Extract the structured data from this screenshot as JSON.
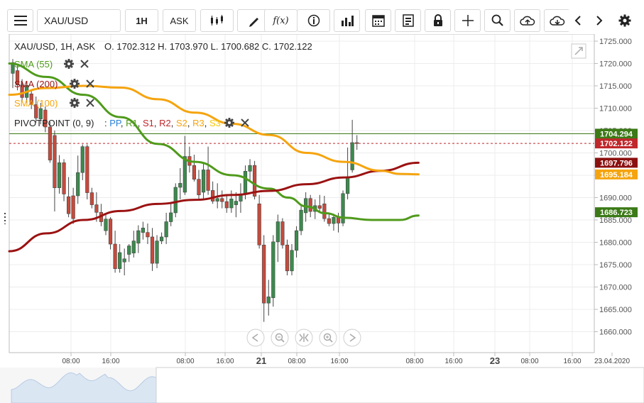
{
  "toolbar": {
    "symbol": "XAU/USD",
    "timeframe": "1H",
    "price_type": "ASK",
    "function_label": "f(x)"
  },
  "header": {
    "pair": "XAU/USD, 1H, ASK",
    "ohlc": "O. 1702.312 H. 1703.970 L. 1700.682 C. 1702.122"
  },
  "indicators": [
    {
      "label": "SMA (55)",
      "color": "#4f9a1b"
    },
    {
      "label": "SMA (200)",
      "color": "#9b1212"
    },
    {
      "label": "SMA (100)",
      "color": "#f5a40e"
    }
  ],
  "pivot": {
    "label": "PIVOTPOINT (0, 9)",
    "parts": [
      {
        "text": "PP",
        "color": "#2a7fd6"
      },
      {
        "text": "R1",
        "color": "#4f9a1b"
      },
      {
        "text": "S1",
        "color": "#c0262a"
      },
      {
        "text": "R2",
        "color": "#c0262a"
      },
      {
        "text": "S2",
        "color": "#f5a40e"
      },
      {
        "text": "R3",
        "color": "#f5a40e"
      },
      {
        "text": "S3",
        "color": "#f5c80e"
      }
    ]
  },
  "badges": [
    {
      "label": "1704.294",
      "price": 1704.294,
      "color": "#3b7a16"
    },
    {
      "label": "1702.122",
      "price": 1702.122,
      "color": "#c0262a"
    },
    {
      "label": "1697.796",
      "price": 1697.796,
      "color": "#8b1010"
    },
    {
      "label": "1695.184",
      "price": 1695.184,
      "color": "#f5a40e"
    },
    {
      "label": "1686.723",
      "price": 1686.723,
      "color": "#3b7a16"
    }
  ],
  "chart_data": {
    "type": "candlestick",
    "symbol": "XAU/USD",
    "timeframe": "1H",
    "y_ticks": [
      "1725.000",
      "1720.000",
      "1715.000",
      "1710.000",
      "1705.000",
      "1700.000",
      "1695.000",
      "1690.000",
      "1685.000",
      "1680.000",
      "1675.000",
      "1670.000",
      "1665.000",
      "1660.000"
    ],
    "ylim": [
      1654,
      1728
    ],
    "x_ticks": [
      "08:00",
      "16:00",
      "08:00",
      "16:00",
      "21",
      "08:00",
      "16:00",
      "08:00",
      "16:00",
      "23",
      "08:00",
      "16:00",
      "23.04.2020"
    ],
    "candles": [
      {
        "o": 1717.8,
        "h": 1721,
        "l": 1714.5,
        "c": 1720.2
      },
      {
        "o": 1718.4,
        "h": 1719.5,
        "l": 1714,
        "c": 1715.2
      },
      {
        "o": 1715.2,
        "h": 1716.5,
        "l": 1711.5,
        "c": 1712.4
      },
      {
        "o": 1712.4,
        "h": 1715.8,
        "l": 1711.2,
        "c": 1715.1
      },
      {
        "o": 1713.2,
        "h": 1713.8,
        "l": 1709.8,
        "c": 1710.8
      },
      {
        "o": 1710.8,
        "h": 1712.6,
        "l": 1706.8,
        "c": 1707.8
      },
      {
        "o": 1707.6,
        "h": 1711.2,
        "l": 1706.4,
        "c": 1709.9
      },
      {
        "o": 1709.6,
        "h": 1710.4,
        "l": 1704.6,
        "c": 1705.8
      },
      {
        "o": 1705.8,
        "h": 1707,
        "l": 1697.8,
        "c": 1698.4
      },
      {
        "o": 1703.9,
        "h": 1705,
        "l": 1686.9,
        "c": 1692.2
      },
      {
        "o": 1692.2,
        "h": 1699.5,
        "l": 1690.9,
        "c": 1697.8
      },
      {
        "o": 1697.8,
        "h": 1698.6,
        "l": 1689.2,
        "c": 1690.8
      },
      {
        "o": 1690.2,
        "h": 1694.6,
        "l": 1685.6,
        "c": 1686.4
      },
      {
        "o": 1690.4,
        "h": 1692.2,
        "l": 1684.1,
        "c": 1685.3
      },
      {
        "o": 1690.4,
        "h": 1699.4,
        "l": 1688.6,
        "c": 1695.6
      },
      {
        "o": 1695.6,
        "h": 1701.9,
        "l": 1693.9,
        "c": 1701.4
      },
      {
        "o": 1701.4,
        "h": 1701.9,
        "l": 1689.6,
        "c": 1691.1
      },
      {
        "o": 1691.1,
        "h": 1692.2,
        "l": 1687.6,
        "c": 1688.4
      },
      {
        "o": 1688.4,
        "h": 1691.2,
        "l": 1684.6,
        "c": 1686.7
      },
      {
        "o": 1686.7,
        "h": 1688.6,
        "l": 1683.6,
        "c": 1684.6
      },
      {
        "o": 1682.6,
        "h": 1686.2,
        "l": 1681.6,
        "c": 1685.2
      },
      {
        "o": 1685.2,
        "h": 1685.6,
        "l": 1678.4,
        "c": 1679.6
      },
      {
        "o": 1679.6,
        "h": 1682.6,
        "l": 1673.2,
        "c": 1674.1
      },
      {
        "o": 1674.1,
        "h": 1679.6,
        "l": 1673.2,
        "c": 1677.7
      },
      {
        "o": 1675.6,
        "h": 1678.6,
        "l": 1672.6,
        "c": 1676.3
      },
      {
        "o": 1677.3,
        "h": 1679.6,
        "l": 1675.6,
        "c": 1679.2
      },
      {
        "o": 1677.6,
        "h": 1682.6,
        "l": 1676.6,
        "c": 1680.3
      },
      {
        "o": 1679.8,
        "h": 1683.8,
        "l": 1677.6,
        "c": 1682.6
      },
      {
        "o": 1682.2,
        "h": 1684.6,
        "l": 1680.6,
        "c": 1683.2
      },
      {
        "o": 1682.2,
        "h": 1684.2,
        "l": 1679.6,
        "c": 1681.2
      },
      {
        "o": 1681.2,
        "h": 1683.2,
        "l": 1673.6,
        "c": 1675.3
      },
      {
        "o": 1675.3,
        "h": 1681.6,
        "l": 1674.2,
        "c": 1680.3
      },
      {
        "o": 1680.3,
        "h": 1682.2,
        "l": 1679.6,
        "c": 1681.2
      },
      {
        "o": 1681.2,
        "h": 1686.6,
        "l": 1679.6,
        "c": 1684.6
      },
      {
        "o": 1684.6,
        "h": 1688.6,
        "l": 1683.6,
        "c": 1686.6
      },
      {
        "o": 1686.6,
        "h": 1693.2,
        "l": 1685.6,
        "c": 1692.3
      },
      {
        "o": 1692.3,
        "h": 1696.6,
        "l": 1689.6,
        "c": 1693.2
      },
      {
        "o": 1691.2,
        "h": 1703.8,
        "l": 1690.6,
        "c": 1699.2
      },
      {
        "o": 1699.2,
        "h": 1701.4,
        "l": 1695.6,
        "c": 1697.2
      },
      {
        "o": 1697.2,
        "h": 1699.6,
        "l": 1693.6,
        "c": 1694.1
      },
      {
        "o": 1694.1,
        "h": 1696.2,
        "l": 1689.6,
        "c": 1690.6
      },
      {
        "o": 1691.2,
        "h": 1697.6,
        "l": 1689.6,
        "c": 1696.2
      },
      {
        "o": 1696.2,
        "h": 1701.4,
        "l": 1690.6,
        "c": 1691.6
      },
      {
        "o": 1691.6,
        "h": 1693.6,
        "l": 1688.6,
        "c": 1689.2
      },
      {
        "o": 1689.2,
        "h": 1693.2,
        "l": 1687.6,
        "c": 1689.8
      },
      {
        "o": 1689.8,
        "h": 1691.6,
        "l": 1687.6,
        "c": 1689.1
      },
      {
        "o": 1689.1,
        "h": 1690.8,
        "l": 1686.6,
        "c": 1687.7
      },
      {
        "o": 1687.7,
        "h": 1691.6,
        "l": 1686.6,
        "c": 1689.7
      },
      {
        "o": 1688.4,
        "h": 1691.2,
        "l": 1685.6,
        "c": 1689.2
      },
      {
        "o": 1689.2,
        "h": 1693.2,
        "l": 1686.6,
        "c": 1690.8
      },
      {
        "o": 1690.8,
        "h": 1697.2,
        "l": 1689.6,
        "c": 1695.9
      },
      {
        "o": 1695.9,
        "h": 1698.6,
        "l": 1693.6,
        "c": 1697.2
      },
      {
        "o": 1697.2,
        "h": 1698.2,
        "l": 1689.6,
        "c": 1690.3
      },
      {
        "o": 1688.6,
        "h": 1690.6,
        "l": 1678.6,
        "c": 1679.4
      },
      {
        "o": 1679.4,
        "h": 1681.6,
        "l": 1662.2,
        "c": 1666.4
      },
      {
        "o": 1666.4,
        "h": 1671.6,
        "l": 1663.6,
        "c": 1667.8
      },
      {
        "o": 1667.6,
        "h": 1681.6,
        "l": 1665.6,
        "c": 1680.1
      },
      {
        "o": 1680.1,
        "h": 1686.2,
        "l": 1675.6,
        "c": 1684.6
      },
      {
        "o": 1684.6,
        "h": 1685.4,
        "l": 1678.6,
        "c": 1679.4
      },
      {
        "o": 1679.4,
        "h": 1680.6,
        "l": 1672.6,
        "c": 1673.6
      },
      {
        "o": 1673.6,
        "h": 1679.6,
        "l": 1672.6,
        "c": 1678.2
      },
      {
        "o": 1678.2,
        "h": 1683.6,
        "l": 1676.6,
        "c": 1682.6
      },
      {
        "o": 1682.6,
        "h": 1688.2,
        "l": 1681.6,
        "c": 1687.2
      },
      {
        "o": 1686.6,
        "h": 1691.2,
        "l": 1684.6,
        "c": 1689.8
      },
      {
        "o": 1689.8,
        "h": 1690.6,
        "l": 1685.6,
        "c": 1686.9
      },
      {
        "o": 1686.9,
        "h": 1689.6,
        "l": 1685.2,
        "c": 1688.2
      },
      {
        "o": 1688.2,
        "h": 1690.6,
        "l": 1686.6,
        "c": 1687.6
      },
      {
        "o": 1688.6,
        "h": 1690.4,
        "l": 1684.6,
        "c": 1685.3
      },
      {
        "o": 1685.3,
        "h": 1686.6,
        "l": 1683.6,
        "c": 1684.2
      },
      {
        "o": 1684.2,
        "h": 1686.4,
        "l": 1682.6,
        "c": 1685.6
      },
      {
        "o": 1685.6,
        "h": 1686.6,
        "l": 1682.2,
        "c": 1684.3
      },
      {
        "o": 1684.3,
        "h": 1691.6,
        "l": 1683.6,
        "c": 1690.9
      },
      {
        "o": 1690.9,
        "h": 1701.2,
        "l": 1689.6,
        "c": 1694.7
      },
      {
        "o": 1696.2,
        "h": 1707.4,
        "l": 1695.6,
        "c": 1702.3
      },
      {
        "o": 1702.3,
        "h": 1703.97,
        "l": 1700.68,
        "c": 1702.12
      }
    ],
    "series": [
      {
        "name": "SMA (55)",
        "color": "#4f9a1b",
        "points": [
          [
            0,
            1720
          ],
          [
            8,
            1717
          ],
          [
            16,
            1713
          ],
          [
            24,
            1708
          ],
          [
            32,
            1702
          ],
          [
            40,
            1698
          ],
          [
            48,
            1695
          ],
          [
            56,
            1692
          ],
          [
            60,
            1690
          ],
          [
            64,
            1688
          ],
          [
            68,
            1686.5
          ],
          [
            72,
            1685.5
          ],
          [
            78,
            1685
          ],
          [
            84,
            1685
          ],
          [
            88,
            1686
          ]
        ]
      },
      {
        "name": "SMA (200)",
        "color": "#9b1212",
        "points": [
          [
            0,
            1678
          ],
          [
            8,
            1682
          ],
          [
            16,
            1685
          ],
          [
            24,
            1687
          ],
          [
            32,
            1688.6
          ],
          [
            40,
            1689.5
          ],
          [
            48,
            1690.6
          ],
          [
            56,
            1691.5
          ],
          [
            64,
            1693
          ],
          [
            72,
            1694.5
          ],
          [
            80,
            1696
          ],
          [
            88,
            1697.8
          ]
        ]
      },
      {
        "name": "SMA (100)",
        "color": "#f5a40e",
        "points": [
          [
            0,
            1713
          ],
          [
            8,
            1714.5
          ],
          [
            16,
            1715
          ],
          [
            24,
            1714.6
          ],
          [
            32,
            1712
          ],
          [
            40,
            1709
          ],
          [
            48,
            1706.5
          ],
          [
            56,
            1704
          ],
          [
            64,
            1700
          ],
          [
            72,
            1698
          ],
          [
            80,
            1696
          ],
          [
            84,
            1695.3
          ],
          [
            88,
            1695.2
          ]
        ]
      }
    ],
    "reference_lines": [
      {
        "price": 1704.294,
        "color": "#3b7a16",
        "style": "solid"
      },
      {
        "price": 1702.122,
        "color": "#c0262a",
        "style": "dashed"
      }
    ]
  }
}
